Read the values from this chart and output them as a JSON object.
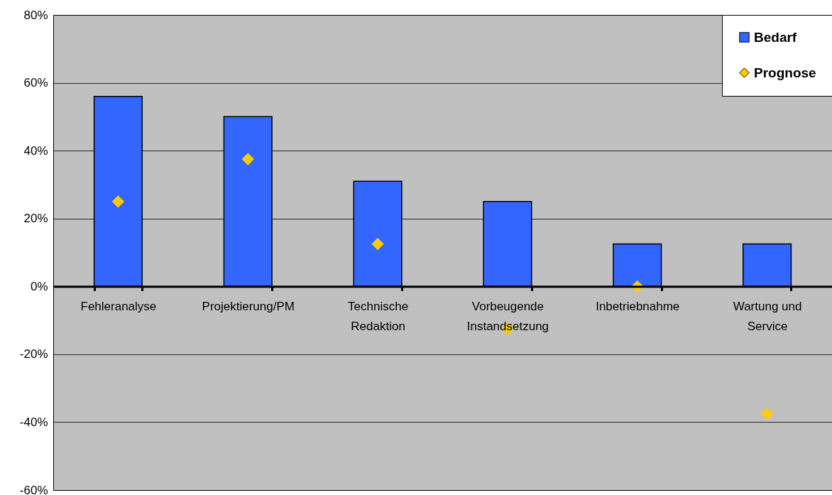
{
  "chart_data": {
    "type": "bar",
    "categories": [
      "Fehleranalyse",
      "Projektierung/PM",
      "Technische Redaktion",
      "Vorbeugende Instandsetzung",
      "Inbetriebnahme",
      "Wartung und Service"
    ],
    "series": [
      {
        "name": "Bedarf",
        "color": "#3366ff",
        "values": [
          56,
          50,
          31,
          25,
          12.5,
          12.5
        ]
      },
      {
        "name": "Prognose",
        "type": "scatter",
        "color": "#ffcc00",
        "values": [
          25,
          37.5,
          12.5,
          -12.5,
          0,
          -37.5
        ]
      }
    ],
    "ylim": [
      -60,
      80
    ],
    "yticks": [
      {
        "value": -60,
        "label": "-60%"
      },
      {
        "value": -40,
        "label": "-40%"
      },
      {
        "value": -20,
        "label": "-20%"
      },
      {
        "value": 0,
        "label": "0%"
      },
      {
        "value": 20,
        "label": "20%"
      },
      {
        "value": 40,
        "label": "40%"
      },
      {
        "value": 60,
        "label": "60%"
      },
      {
        "value": 80,
        "label": "80%"
      }
    ],
    "grid": "y",
    "legend": "top right",
    "marker": "diamond"
  }
}
